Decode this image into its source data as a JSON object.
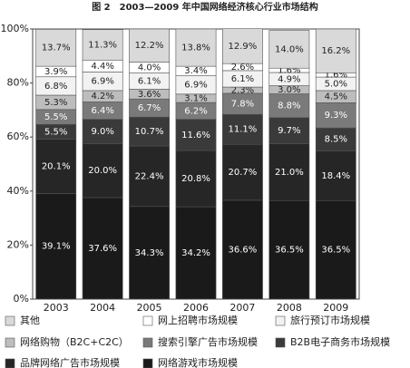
{
  "chart_data": {
    "type": "stacked-bar",
    "title": "图 2　2003—2009 年中国网络经济核心行业市场结构",
    "categories": [
      "2003",
      "2004",
      "2005",
      "2006",
      "2007",
      "2008",
      "2009"
    ],
    "ylim": [
      0,
      100
    ],
    "yticks": [
      {
        "value": 0,
        "label": "0%"
      },
      {
        "value": 20,
        "label": "20%"
      },
      {
        "value": 40,
        "label": "40%"
      },
      {
        "value": 60,
        "label": "60%"
      },
      {
        "value": 80,
        "label": "80%"
      },
      {
        "value": 100,
        "label": "100%"
      }
    ],
    "series": [
      {
        "name": "其他",
        "color": "#d9d9d9",
        "values": [
          13.7,
          11.3,
          12.2,
          13.8,
          12.9,
          14.0,
          16.2
        ],
        "value_labels": [
          "13.7%",
          "11.3%",
          "12.2%",
          "13.8%",
          "12.9%",
          "14.0%",
          "16.2%"
        ]
      },
      {
        "name": "网上招聘市场规模",
        "color": "#ffffff",
        "values": [
          3.9,
          4.4,
          4.0,
          3.4,
          2.6,
          1.6,
          1.6
        ],
        "value_labels": [
          "3.9%",
          "4.4%",
          "4.0%",
          "3.4%",
          "2.6%",
          "1.6%",
          "1.6%"
        ]
      },
      {
        "name": "旅行预订市场规模",
        "color": "#f2f2f2",
        "values": [
          6.8,
          6.9,
          6.1,
          6.9,
          6.1,
          4.9,
          5.0
        ],
        "value_labels": [
          "6.8%",
          "6.9%",
          "6.1%",
          "6.9%",
          "6.1%",
          "4.9%",
          "5.0%"
        ]
      },
      {
        "name": "网络购物（B2C+C2C）",
        "color": "#bdbdbd",
        "values": [
          5.3,
          4.2,
          3.6,
          3.1,
          2.3,
          3.0,
          4.5
        ],
        "value_labels": [
          "5.3%",
          "4.2%",
          "3.6%",
          "3.1%",
          "2.3%",
          "3.0%",
          "4.5%"
        ]
      },
      {
        "name": "搜索引擎广告市场规模",
        "color": "#7a7a7a",
        "values": [
          5.5,
          6.4,
          6.7,
          6.2,
          7.8,
          8.8,
          9.3
        ],
        "value_labels": [
          "5.5%",
          "6.4%",
          "6.7%",
          "6.2%",
          "7.8%",
          "8.8%",
          "9.3%"
        ]
      },
      {
        "name": "B2B电子商务市场规模",
        "color": "#3a3a3a",
        "values": [
          5.5,
          9.0,
          10.7,
          11.6,
          11.1,
          9.7,
          8.5
        ],
        "value_labels": [
          "5.5%",
          "9.0%",
          "10.7%",
          "11.6%",
          "11.1%",
          "9.7%",
          "8.5%"
        ]
      },
      {
        "name": "品牌网络广告市场规模",
        "color": "#262626",
        "values": [
          20.1,
          20.0,
          22.4,
          20.8,
          20.7,
          21.0,
          18.4
        ],
        "value_labels": [
          "20.1%",
          "20.0%",
          "22.4%",
          "20.8%",
          "20.7%",
          "21.0%",
          "18.4%"
        ]
      },
      {
        "name": "网络游戏市场规模",
        "color": "#1a1a1a",
        "values": [
          39.1,
          37.6,
          34.3,
          34.2,
          36.6,
          36.5,
          36.5
        ],
        "value_labels": [
          "39.1%",
          "37.6%",
          "34.3%",
          "34.2%",
          "36.6%",
          "36.5%",
          "36.5%"
        ]
      }
    ]
  }
}
